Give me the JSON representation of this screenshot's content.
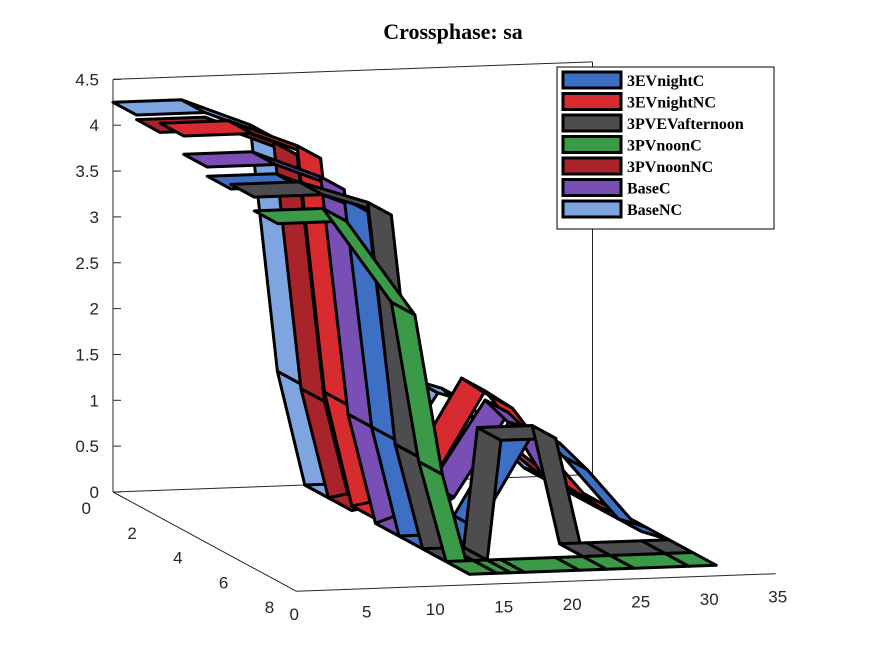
{
  "chart_data": {
    "type": "surface3d",
    "title": "Crossphase: sa",
    "xlabel": "",
    "ylabel": "",
    "zlabel": "",
    "xlim": [
      0,
      35
    ],
    "ylim": [
      0,
      8
    ],
    "zlim": [
      0,
      4.5
    ],
    "x_ticks": [
      "0",
      "5",
      "10",
      "15",
      "20",
      "25",
      "30",
      "35"
    ],
    "y_ticks": [
      "0",
      "2",
      "4",
      "6",
      "8"
    ],
    "z_ticks": [
      "0",
      "0.5",
      "1",
      "1.5",
      "2",
      "2.5",
      "3",
      "3.5",
      "4",
      "4.5"
    ],
    "legend_position": "top-right",
    "grid": false,
    "series": [
      {
        "name": "3EVnightC",
        "color": "#3d6fc5",
        "x": [
          0,
          5,
          10,
          12,
          14,
          16,
          17,
          18,
          22,
          24,
          26,
          30,
          32
        ],
        "values": [
          4.0,
          4.0,
          3.7,
          1.2,
          0.0,
          0.0,
          0.05,
          0.2,
          1.2,
          1.1,
          0.8,
          0.1,
          0.0
        ]
      },
      {
        "name": "3EVnightNC",
        "color": "#d72b2f",
        "x": [
          0,
          5,
          10,
          12,
          14,
          16,
          17,
          18,
          22,
          24,
          26,
          30,
          32
        ],
        "values": [
          4.3,
          4.3,
          4.0,
          1.3,
          0.05,
          0.1,
          0.3,
          0.4,
          1.4,
          1.2,
          0.8,
          0.1,
          0.0
        ]
      },
      {
        "name": "3PVEVafternoon",
        "color": "#4d4d4f",
        "x": [
          0,
          5,
          10,
          12,
          14,
          16,
          17,
          18,
          22,
          24,
          26,
          30,
          32
        ],
        "values": [
          4.05,
          4.05,
          3.8,
          1.15,
          0.0,
          0.0,
          0.0,
          1.3,
          1.3,
          0.0,
          0.0,
          0.0,
          0.0
        ]
      },
      {
        "name": "3PVnoonC",
        "color": "#3a9a47",
        "x": [
          0,
          5,
          10,
          12,
          14,
          16,
          17,
          18,
          22,
          24,
          26,
          30,
          32
        ],
        "values": [
          3.9,
          3.9,
          2.85,
          1.1,
          0.0,
          0.0,
          0.0,
          0.0,
          0.0,
          0.0,
          0.0,
          0.0,
          0.0
        ]
      },
      {
        "name": "3PVnoonNC",
        "color": "#a9242a",
        "x": [
          0,
          5,
          10,
          12,
          14,
          16,
          17,
          18,
          22,
          24,
          26,
          30,
          32
        ],
        "values": [
          4.2,
          4.2,
          3.9,
          1.2,
          0.0,
          0.05,
          0.1,
          0.2,
          0.4,
          0.6,
          0.6,
          0.1,
          0.0
        ]
      },
      {
        "name": "BaseC",
        "color": "#7a4fb5",
        "x": [
          0,
          5,
          10,
          12,
          14,
          16,
          17,
          18,
          22,
          24,
          26,
          30,
          32
        ],
        "values": [
          4.1,
          4.1,
          3.8,
          1.2,
          0.0,
          0.1,
          0.3,
          0.4,
          1.3,
          1.0,
          0.5,
          0.1,
          0.0
        ]
      },
      {
        "name": "BaseNC",
        "color": "#7ea5e0",
        "x": [
          0,
          5,
          10,
          12,
          14,
          16,
          17,
          18,
          22,
          24,
          26,
          30,
          32
        ],
        "values": [
          4.25,
          4.25,
          3.95,
          1.25,
          0.0,
          0.0,
          0.05,
          0.2,
          1.1,
          1.0,
          0.7,
          0.1,
          0.0
        ]
      }
    ]
  }
}
